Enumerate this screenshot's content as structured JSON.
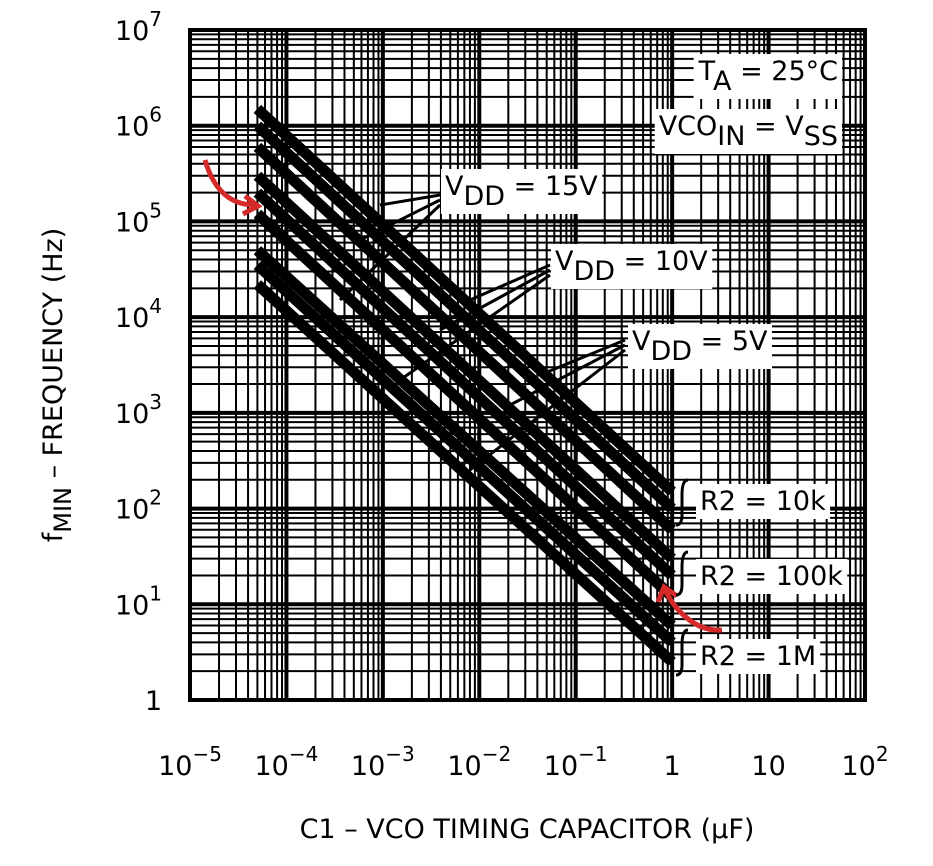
{
  "chart_data": {
    "type": "line",
    "x_label": [
      "C1 – VCO TIMING CAPACITOR (µF)"
    ],
    "y_label": [
      "f",
      "MIN",
      " – FREQUENCY (Hz)"
    ],
    "log_x": true,
    "log_y": true,
    "grid": true,
    "xlim": [
      1e-05,
      100
    ],
    "ylim": [
      1,
      10000000
    ],
    "xticks": [
      {
        "value": 1e-05,
        "label": "10",
        "exponent": "−5"
      },
      {
        "value": 0.0001,
        "label": "10",
        "exponent": "−4"
      },
      {
        "value": 0.001,
        "label": "10",
        "exponent": "−3"
      },
      {
        "value": 0.01,
        "label": "10",
        "exponent": "−2"
      },
      {
        "value": 0.1,
        "label": "10",
        "exponent": "−1"
      },
      1,
      10,
      {
        "value": 100,
        "label": "10",
        "exponent": "2"
      }
    ],
    "yticks": [
      1,
      {
        "value": 10,
        "label": "10",
        "exponent": "1"
      },
      {
        "value": 100,
        "label": "10",
        "exponent": "2"
      },
      {
        "value": 1000,
        "label": "10",
        "exponent": "3"
      },
      {
        "value": 10000,
        "label": "10",
        "exponent": "4"
      },
      {
        "value": 100000,
        "label": "10",
        "exponent": "5"
      },
      {
        "value": 1000000,
        "label": "10",
        "exponent": "6"
      },
      {
        "value": 10000000,
        "label": "10",
        "exponent": "7"
      }
    ],
    "x": [
      5e-05,
      1
    ],
    "color": "#000000",
    "series": [
      {
        "values": [
          1500000,
          150
        ]
      },
      {
        "values": [
          1000000,
          100
        ]
      },
      {
        "values": [
          600000,
          60
        ]
      },
      {
        "values": [
          300000,
          30
        ]
      },
      {
        "values": [
          200000,
          20
        ]
      },
      {
        "values": [
          120000,
          12
        ]
      },
      {
        "values": [
          50000,
          6
        ]
      },
      {
        "values": [
          35000,
          4
        ]
      },
      {
        "values": [
          22000,
          2.5
        ]
      }
    ],
    "annotations": [
      [
        "T",
        "A",
        " = 25°C"
      ],
      [
        "VCO",
        "IN",
        " = V",
        "SS"
      ],
      [
        "V",
        "DD",
        " = 15V"
      ],
      [
        "V",
        "DD",
        " = 10V"
      ],
      [
        "V",
        "DD",
        " = 5V"
      ],
      [
        "R2 = 10k"
      ],
      [
        "R2 = 100k"
      ],
      [
        "R2 = 1M"
      ]
    ]
  }
}
